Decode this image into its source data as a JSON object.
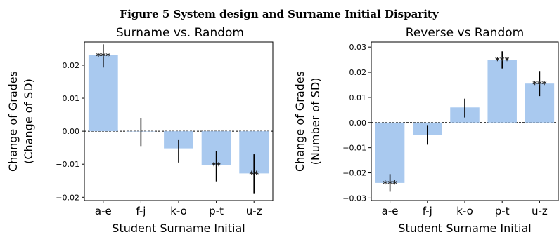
{
  "figure_title": "Figure 5      System design and Surname Initial Disparity",
  "chart_data": [
    {
      "type": "bar",
      "title": "Surname vs. Random",
      "categories": [
        "a-e",
        "f-j",
        "k-o",
        "p-t",
        "u-z"
      ],
      "values": [
        0.023,
        0.0,
        -0.0052,
        -0.0102,
        -0.0128
      ],
      "error_low": [
        0.0193,
        -0.0045,
        -0.0095,
        -0.0152,
        -0.0188
      ],
      "error_high": [
        0.0263,
        0.004,
        -0.0025,
        -0.006,
        -0.007
      ],
      "significance": [
        "***",
        "",
        "",
        "**",
        "**"
      ],
      "xlabel": "Student Surname Initial",
      "ylabel_line1": "Change of Grades",
      "ylabel_line2": "(Change of SD)",
      "ylim": [
        -0.021,
        0.027
      ],
      "yticks": [
        0.02,
        0.01,
        0.0,
        -0.01,
        -0.02
      ],
      "ytick_labels": [
        "0.02",
        "0.01",
        "0.00",
        "−0.01",
        "−0.02"
      ],
      "bar_color": "#a9c9ef",
      "zero_line": "dashed"
    },
    {
      "type": "bar",
      "title": "Reverse vs Random",
      "categories": [
        "a-e",
        "f-j",
        "k-o",
        "p-t",
        "u-z"
      ],
      "values": [
        -0.024,
        -0.005,
        0.006,
        0.025,
        0.0155
      ],
      "error_low": [
        -0.0275,
        -0.0088,
        0.002,
        0.0215,
        0.0105
      ],
      "error_high": [
        -0.0205,
        -0.001,
        0.0095,
        0.0283,
        0.0205
      ],
      "significance": [
        "***",
        "",
        "",
        "***",
        "***"
      ],
      "xlabel": "Student Surname Initial",
      "ylabel_line1": "Change of Grades",
      "ylabel_line2": "(Number of SD)",
      "ylim": [
        -0.031,
        0.032
      ],
      "yticks": [
        0.03,
        0.02,
        0.01,
        0.0,
        -0.01,
        -0.02,
        -0.03
      ],
      "ytick_labels": [
        "0.03",
        "0.02",
        "0.01",
        "0.00",
        "−0.01",
        "−0.02",
        "−0.03"
      ],
      "bar_color": "#a9c9ef",
      "zero_line": "dashed"
    }
  ]
}
